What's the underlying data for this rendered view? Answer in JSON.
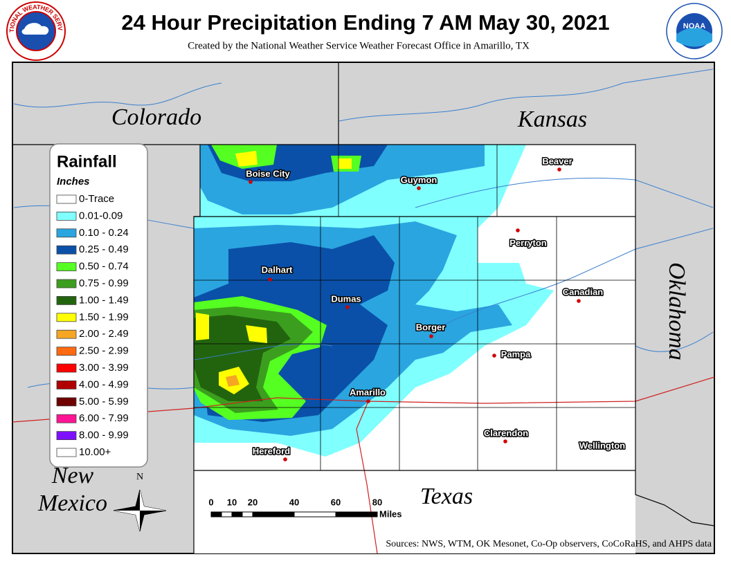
{
  "header": {
    "title": "24 Hour Precipitation Ending 7 AM May 30, 2021",
    "subtitle": "Created by the National Weather Service Weather Forecast Office in Amarillo, TX"
  },
  "logos": {
    "nws_ring": "NATIONAL WEATHER SERVICE",
    "noaa": "NOAA"
  },
  "states": [
    {
      "name": "Colorado"
    },
    {
      "name": "Kansas"
    },
    {
      "name": "Oklahoma"
    },
    {
      "name": "Texas"
    },
    {
      "name": "New Mexico",
      "lines": [
        "New",
        "Mexico"
      ]
    }
  ],
  "cities": [
    "Boise City",
    "Guymon",
    "Beaver",
    "Perryton",
    "Dalhart",
    "Dumas",
    "Canadian",
    "Borger",
    "Pampa",
    "Amarillo",
    "Clarendon",
    "Wellington",
    "Hereford"
  ],
  "legend": {
    "title": "Rainfall",
    "units": "Inches",
    "items": [
      {
        "label": "0-Trace",
        "color": "#ffffff"
      },
      {
        "label": "0.01-0.09",
        "color": "#80ffff"
      },
      {
        "label": "0.10 - 0.24",
        "color": "#2aa5e0"
      },
      {
        "label": "0.25 - 0.49",
        "color": "#0a50a8"
      },
      {
        "label": "0.50 - 0.74",
        "color": "#55ff22"
      },
      {
        "label": "0.75 - 0.99",
        "color": "#3c9e1e"
      },
      {
        "label": "1.00 - 1.49",
        "color": "#22640e"
      },
      {
        "label": "1.50 - 1.99",
        "color": "#ffff00"
      },
      {
        "label": "2.00 - 2.49",
        "color": "#f5a623"
      },
      {
        "label": "2.50 - 2.99",
        "color": "#ff6a10"
      },
      {
        "label": "3.00 - 3.99",
        "color": "#ff0000"
      },
      {
        "label": "4.00 - 4.99",
        "color": "#b00000"
      },
      {
        "label": "5.00 - 5.99",
        "color": "#6e0000"
      },
      {
        "label": "6.00 - 7.99",
        "color": "#ff1493"
      },
      {
        "label": "8.00 - 9.99",
        "color": "#7f10ff"
      },
      {
        "label": "10.00+",
        "color": "#ffffff"
      }
    ]
  },
  "scale": {
    "ticks": [
      0,
      10,
      20,
      40,
      60,
      80
    ],
    "unit": "Miles"
  },
  "compass": "N",
  "sources": "Sources:  NWS, WTM, OK Mesonet, Co-Op observers, CoCoRaHS, and AHPS data"
}
